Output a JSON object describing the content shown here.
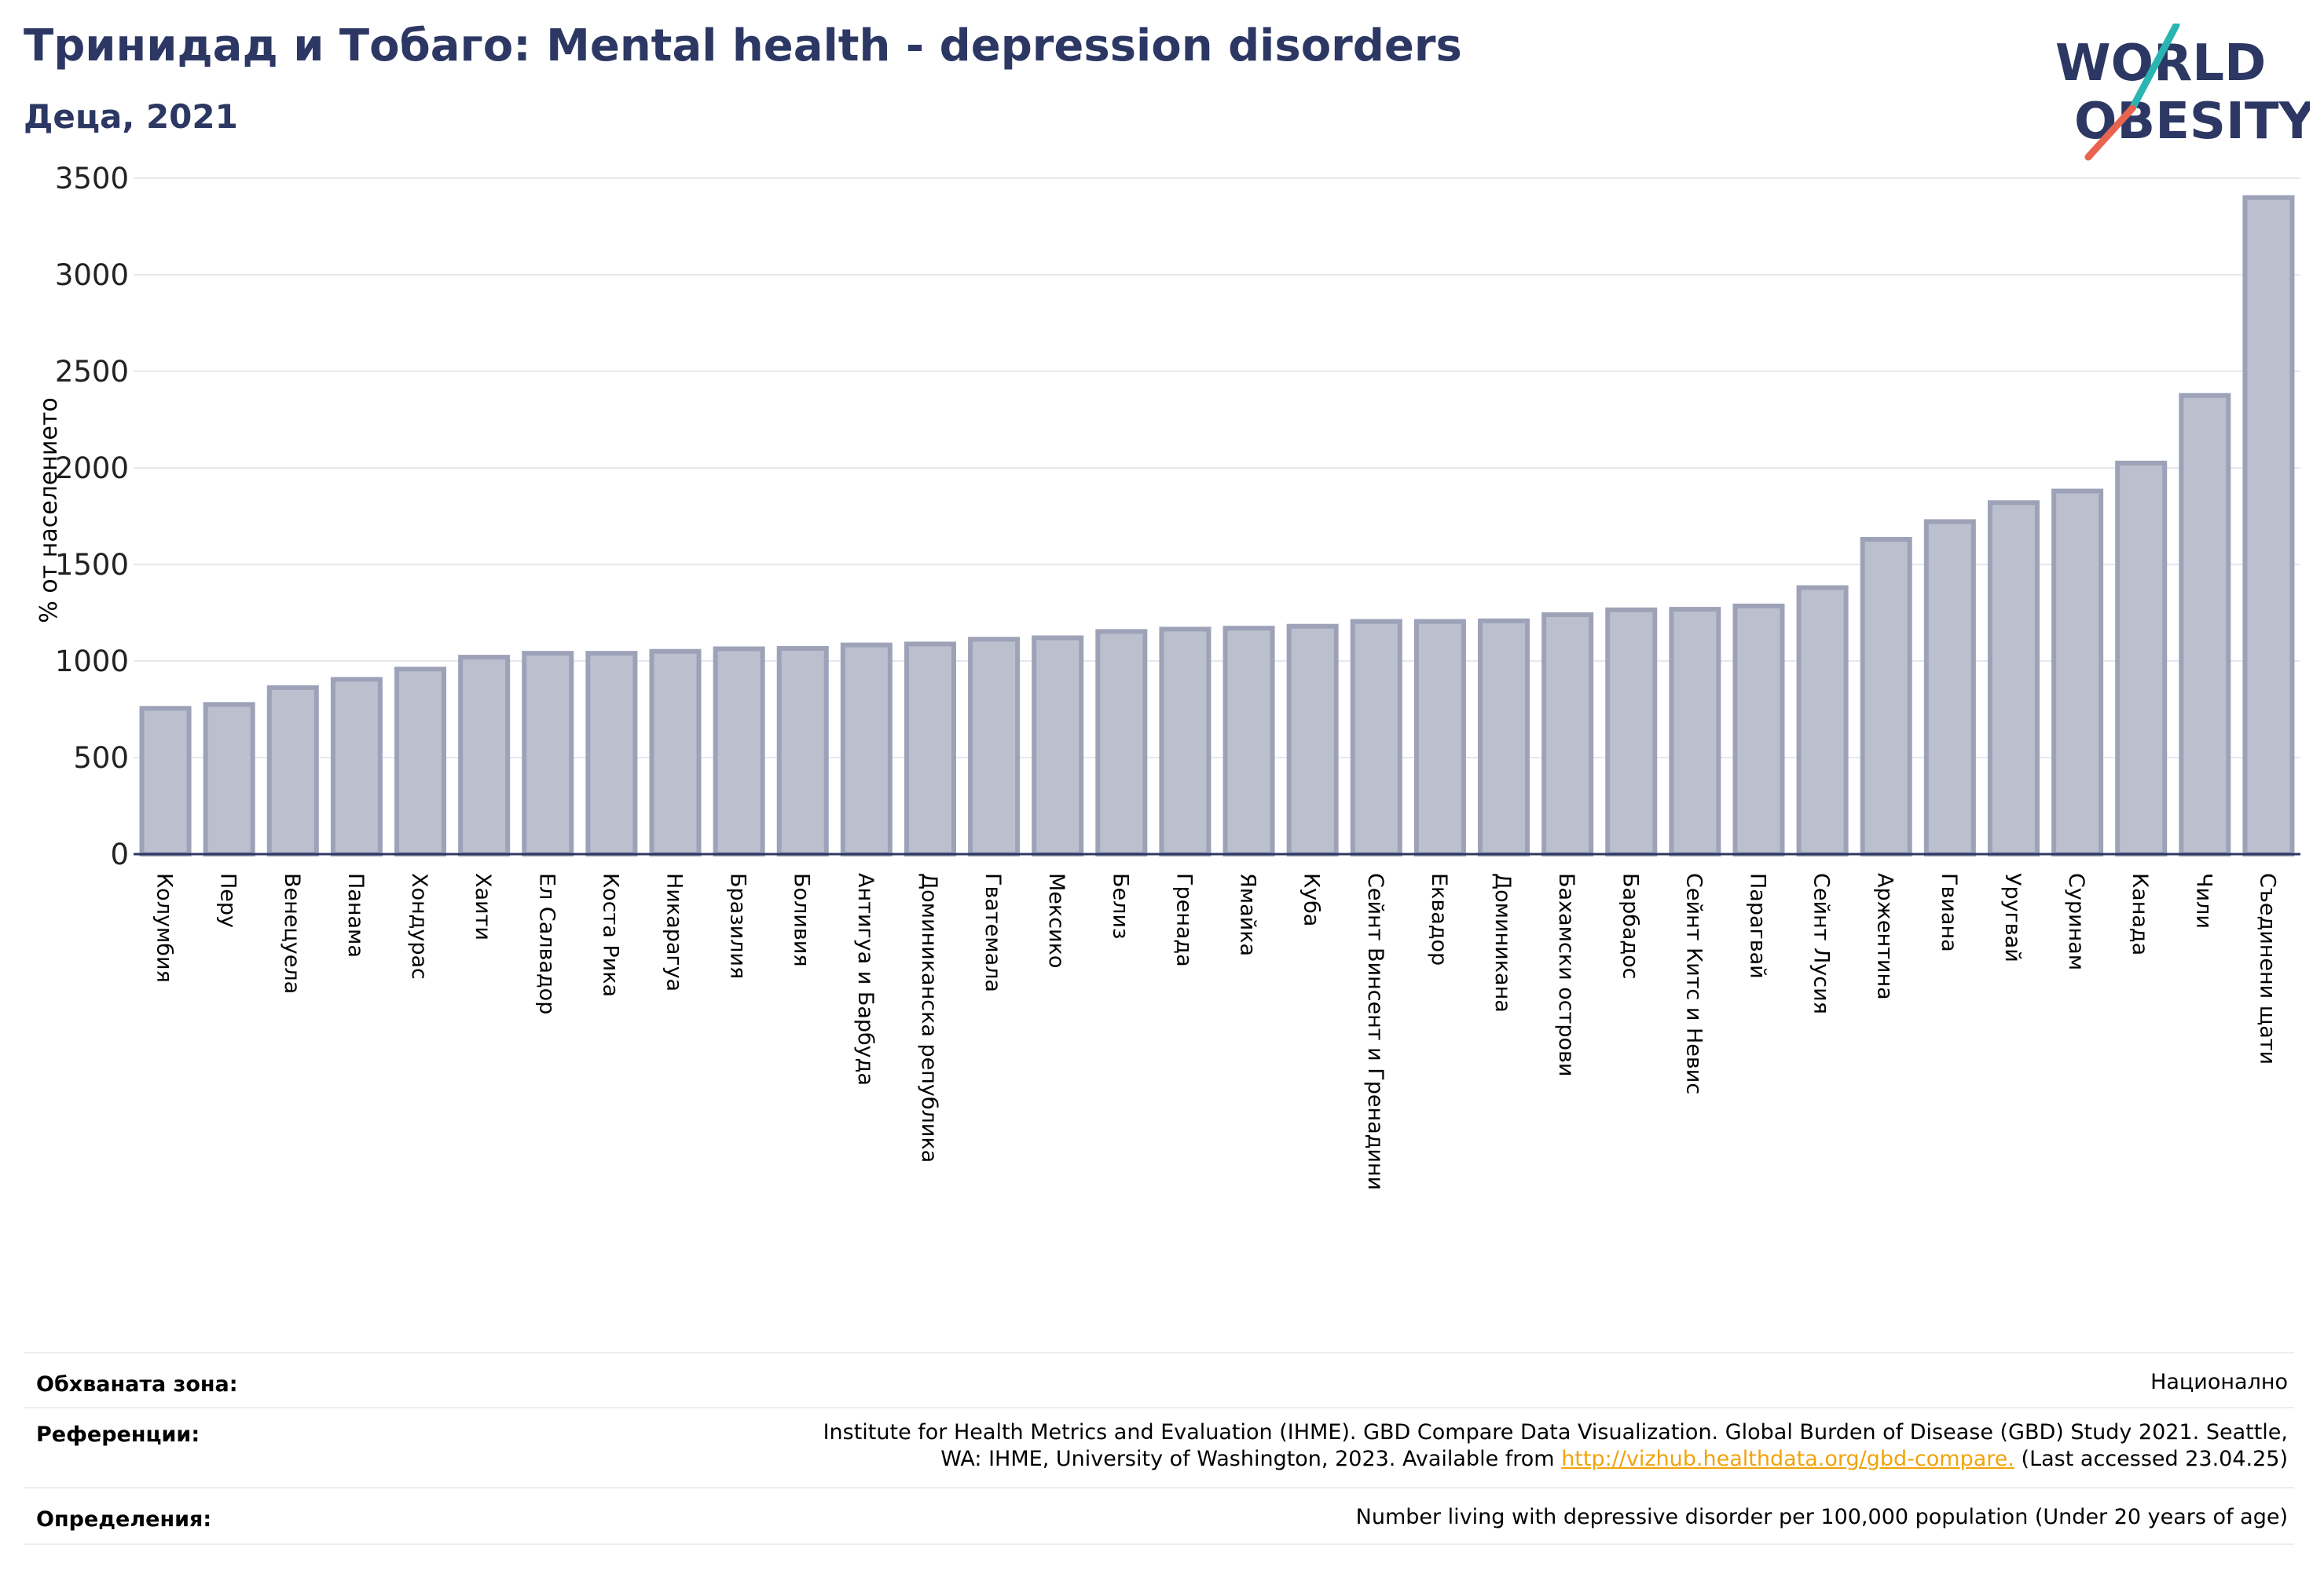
{
  "header": {
    "title": "Тринидад и Тобаго: Mental health - depression disorders",
    "subtitle": "Деца, 2021"
  },
  "logo": {
    "line1": "WORLD",
    "line2": "OBESITY",
    "accent_teal": "#2bb5b1",
    "accent_red": "#e8644f",
    "color": "#2c3863"
  },
  "chart_data": {
    "type": "bar",
    "title": "",
    "xlabel": "",
    "ylabel": "% от населението",
    "ylim": [
      0,
      3500
    ],
    "yticks": [
      0,
      500,
      1000,
      1500,
      2000,
      2500,
      3000,
      3500
    ],
    "grid": true,
    "bar_color": "#bcbfcd",
    "bar_edge_color": "#9da2b8",
    "categories": [
      "Колумбия",
      "Перу",
      "Венецуела",
      "Панама",
      "Хондурас",
      "Хаити",
      "Ел Салвадор",
      "Коста Рика",
      "Никарагуа",
      "Бразилия",
      "Боливия",
      "Антигуа и Барбуда",
      "Доминиканска република",
      "Гватемала",
      "Мексико",
      "Белиз",
      "Гренада",
      "Ямайка",
      "Куба",
      "Сейнт Винсент и Гренадини",
      "Еквадор",
      "Доминикана",
      "Бахамски острови",
      "Барбадос",
      "Сейнт Китс и Невис",
      "Парагвай",
      "Сейнт Лусия",
      "Аржентина",
      "Гвиана",
      "Уругвай",
      "Суринам",
      "Канада",
      "Чили",
      "Съединени щати"
    ],
    "values": [
      755,
      775,
      862,
      905,
      958,
      1020,
      1040,
      1040,
      1050,
      1063,
      1065,
      1083,
      1088,
      1113,
      1120,
      1153,
      1165,
      1170,
      1180,
      1205,
      1205,
      1208,
      1240,
      1265,
      1268,
      1285,
      1380,
      1630,
      1722,
      1820,
      1880,
      2025,
      2375,
      3400
    ]
  },
  "footer": {
    "rows": [
      {
        "label": "Обхваната зона:",
        "value": "Национално"
      },
      {
        "label": "Референции:",
        "value_line1": "Institute for Health Metrics and Evaluation (IHME). GBD Compare Data Visualization. Global Burden of Disease (GBD) Study 2021. Seattle,",
        "value_line2_pre": "WA: IHME, University of Washington, 2023. Available from ",
        "link": "http://vizhub.healthdata.org/gbd-compare.",
        "value_line2_post": " (Last accessed 23.04.25)"
      },
      {
        "label": "Определения:",
        "value": "Number living with depressive disorder per 100,000 population (Under 20 years of age)"
      }
    ]
  }
}
